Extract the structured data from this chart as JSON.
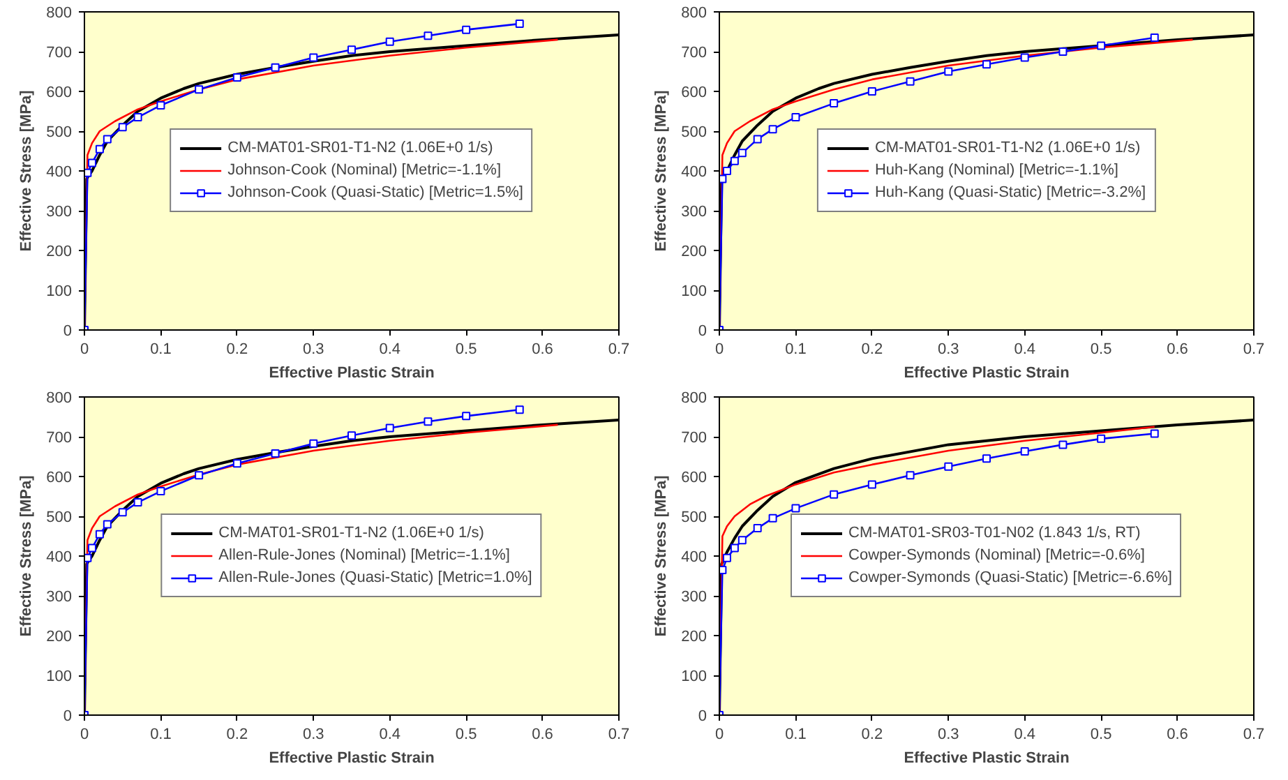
{
  "chart_data": [
    {
      "type": "line",
      "xlabel": "Effective Plastic Strain",
      "ylabel": "Effective Stress [MPa]",
      "xlim": [
        0,
        0.7
      ],
      "ylim": [
        0,
        800
      ],
      "xticks": [
        0,
        0.1,
        0.2,
        0.3,
        0.4,
        0.5,
        0.6,
        0.7
      ],
      "yticks": [
        0,
        100,
        200,
        300,
        400,
        500,
        600,
        700,
        800
      ],
      "grid": false,
      "legend": "center",
      "series": [
        {
          "name": "CM-MAT01-SR01-T1-N2 (1.06E+0 1/s)",
          "color": "#000000",
          "marker": "none",
          "x": [
            0,
            0.003,
            0.006,
            0.01,
            0.02,
            0.03,
            0.05,
            0.07,
            0.1,
            0.13,
            0.15,
            0.2,
            0.25,
            0.3,
            0.35,
            0.4,
            0.5,
            0.6,
            0.7
          ],
          "values": [
            0,
            380,
            390,
            400,
            440,
            475,
            515,
            550,
            583,
            607,
            620,
            643,
            660,
            676,
            690,
            700,
            715,
            730,
            742
          ]
        },
        {
          "name": "Johnson-Cook (Nominal) [Metric=-1.1%]",
          "color": "#ff0000",
          "marker": "none",
          "x": [
            0,
            0.004,
            0.01,
            0.02,
            0.04,
            0.07,
            0.1,
            0.15,
            0.2,
            0.3,
            0.4,
            0.5,
            0.62
          ],
          "values": [
            0,
            440,
            470,
            500,
            525,
            555,
            575,
            605,
            630,
            665,
            690,
            710,
            730
          ]
        },
        {
          "name": "Johnson-Cook (Quasi-Static) [Metric=1.5%]",
          "color": "#0000ff",
          "marker": "square",
          "x": [
            0,
            0.004,
            0.01,
            0.02,
            0.03,
            0.05,
            0.07,
            0.1,
            0.15,
            0.2,
            0.25,
            0.3,
            0.35,
            0.4,
            0.45,
            0.5,
            0.57
          ],
          "values": [
            0,
            395,
            420,
            455,
            480,
            510,
            535,
            565,
            605,
            635,
            660,
            685,
            705,
            725,
            740,
            755,
            770
          ]
        }
      ]
    },
    {
      "type": "line",
      "xlabel": "Effective Plastic Strain",
      "ylabel": "Effective Stress [MPa]",
      "xlim": [
        0,
        0.7
      ],
      "ylim": [
        0,
        800
      ],
      "xticks": [
        0,
        0.1,
        0.2,
        0.3,
        0.4,
        0.5,
        0.6,
        0.7
      ],
      "yticks": [
        0,
        100,
        200,
        300,
        400,
        500,
        600,
        700,
        800
      ],
      "grid": false,
      "legend": "center",
      "series": [
        {
          "name": "CM-MAT01-SR01-T1-N2 (1.06E+0 1/s)",
          "color": "#000000",
          "marker": "none",
          "x": [
            0,
            0.003,
            0.006,
            0.01,
            0.02,
            0.03,
            0.05,
            0.07,
            0.1,
            0.13,
            0.15,
            0.2,
            0.25,
            0.3,
            0.35,
            0.4,
            0.5,
            0.6,
            0.7
          ],
          "values": [
            0,
            380,
            390,
            400,
            440,
            475,
            515,
            550,
            583,
            607,
            620,
            643,
            660,
            676,
            690,
            700,
            715,
            730,
            742
          ]
        },
        {
          "name": "Huh-Kang (Nominal) [Metric=-1.1%]",
          "color": "#ff0000",
          "marker": "none",
          "x": [
            0,
            0.004,
            0.01,
            0.02,
            0.04,
            0.07,
            0.1,
            0.15,
            0.2,
            0.3,
            0.4,
            0.5,
            0.62
          ],
          "values": [
            0,
            440,
            470,
            500,
            525,
            555,
            575,
            605,
            630,
            665,
            690,
            710,
            730
          ]
        },
        {
          "name": "Huh-Kang (Quasi-Static) [Metric=-3.2%]",
          "color": "#0000ff",
          "marker": "square",
          "x": [
            0,
            0.004,
            0.01,
            0.02,
            0.03,
            0.05,
            0.07,
            0.1,
            0.15,
            0.2,
            0.25,
            0.3,
            0.35,
            0.4,
            0.45,
            0.5,
            0.57
          ],
          "values": [
            0,
            380,
            400,
            425,
            445,
            480,
            505,
            535,
            570,
            600,
            625,
            650,
            668,
            685,
            700,
            715,
            735
          ]
        }
      ]
    },
    {
      "type": "line",
      "xlabel": "Effective Plastic Strain",
      "ylabel": "Effective Stress [MPa]",
      "xlim": [
        0,
        0.7
      ],
      "ylim": [
        0,
        800
      ],
      "xticks": [
        0,
        0.1,
        0.2,
        0.3,
        0.4,
        0.5,
        0.6,
        0.7
      ],
      "yticks": [
        0,
        100,
        200,
        300,
        400,
        500,
        600,
        700,
        800
      ],
      "grid": false,
      "legend": "center",
      "series": [
        {
          "name": "CM-MAT01-SR01-T1-N2 (1.06E+0 1/s)",
          "color": "#000000",
          "marker": "none",
          "x": [
            0,
            0.003,
            0.006,
            0.01,
            0.02,
            0.03,
            0.05,
            0.07,
            0.1,
            0.13,
            0.15,
            0.2,
            0.25,
            0.3,
            0.35,
            0.4,
            0.5,
            0.6,
            0.7
          ],
          "values": [
            0,
            380,
            390,
            400,
            440,
            475,
            515,
            550,
            583,
            607,
            620,
            643,
            660,
            676,
            690,
            700,
            715,
            730,
            742
          ]
        },
        {
          "name": "Allen-Rule-Jones (Nominal) [Metric=-1.1%]",
          "color": "#ff0000",
          "marker": "none",
          "x": [
            0,
            0.004,
            0.01,
            0.02,
            0.04,
            0.07,
            0.1,
            0.15,
            0.2,
            0.3,
            0.4,
            0.5,
            0.62
          ],
          "values": [
            0,
            440,
            470,
            500,
            525,
            555,
            575,
            605,
            630,
            665,
            690,
            710,
            730
          ]
        },
        {
          "name": "Allen-Rule-Jones (Quasi-Static) [Metric=1.0%]",
          "color": "#0000ff",
          "marker": "square",
          "x": [
            0,
            0.004,
            0.01,
            0.02,
            0.03,
            0.05,
            0.07,
            0.1,
            0.15,
            0.2,
            0.25,
            0.3,
            0.35,
            0.4,
            0.45,
            0.5,
            0.57
          ],
          "values": [
            0,
            395,
            420,
            455,
            480,
            510,
            535,
            563,
            603,
            633,
            658,
            683,
            703,
            722,
            738,
            752,
            768
          ]
        }
      ]
    },
    {
      "type": "line",
      "xlabel": "Effective Plastic Strain",
      "ylabel": "Effective Stress [MPa]",
      "xlim": [
        0,
        0.7
      ],
      "ylim": [
        0,
        800
      ],
      "xticks": [
        0,
        0.1,
        0.2,
        0.3,
        0.4,
        0.5,
        0.6,
        0.7
      ],
      "yticks": [
        0,
        100,
        200,
        300,
        400,
        500,
        600,
        700,
        800
      ],
      "grid": false,
      "legend": "center",
      "series": [
        {
          "name": "CM-MAT01-SR03-T01-N02 (1.843 1/s, RT)",
          "color": "#000000",
          "marker": "none",
          "x": [
            0,
            0.003,
            0.01,
            0.02,
            0.03,
            0.05,
            0.07,
            0.1,
            0.15,
            0.2,
            0.3,
            0.4,
            0.5,
            0.6,
            0.7
          ],
          "values": [
            0,
            380,
            410,
            445,
            475,
            515,
            550,
            585,
            620,
            645,
            680,
            700,
            715,
            730,
            742
          ]
        },
        {
          "name": "Cowper-Symonds (Nominal) [Metric=-0.6%]",
          "color": "#ff0000",
          "marker": "none",
          "x": [
            0,
            0.004,
            0.01,
            0.02,
            0.04,
            0.06,
            0.1,
            0.15,
            0.2,
            0.3,
            0.4,
            0.5,
            0.57
          ],
          "values": [
            0,
            450,
            475,
            500,
            530,
            550,
            580,
            610,
            630,
            665,
            690,
            710,
            725
          ]
        },
        {
          "name": "Cowper-Symonds (Quasi-Static) [Metric=-6.6%]",
          "color": "#0000ff",
          "marker": "square",
          "x": [
            0,
            0.004,
            0.01,
            0.02,
            0.03,
            0.05,
            0.07,
            0.1,
            0.15,
            0.2,
            0.25,
            0.3,
            0.35,
            0.4,
            0.45,
            0.5,
            0.57
          ],
          "values": [
            0,
            365,
            395,
            420,
            440,
            470,
            495,
            520,
            555,
            580,
            603,
            625,
            645,
            663,
            680,
            695,
            708
          ]
        }
      ]
    }
  ]
}
